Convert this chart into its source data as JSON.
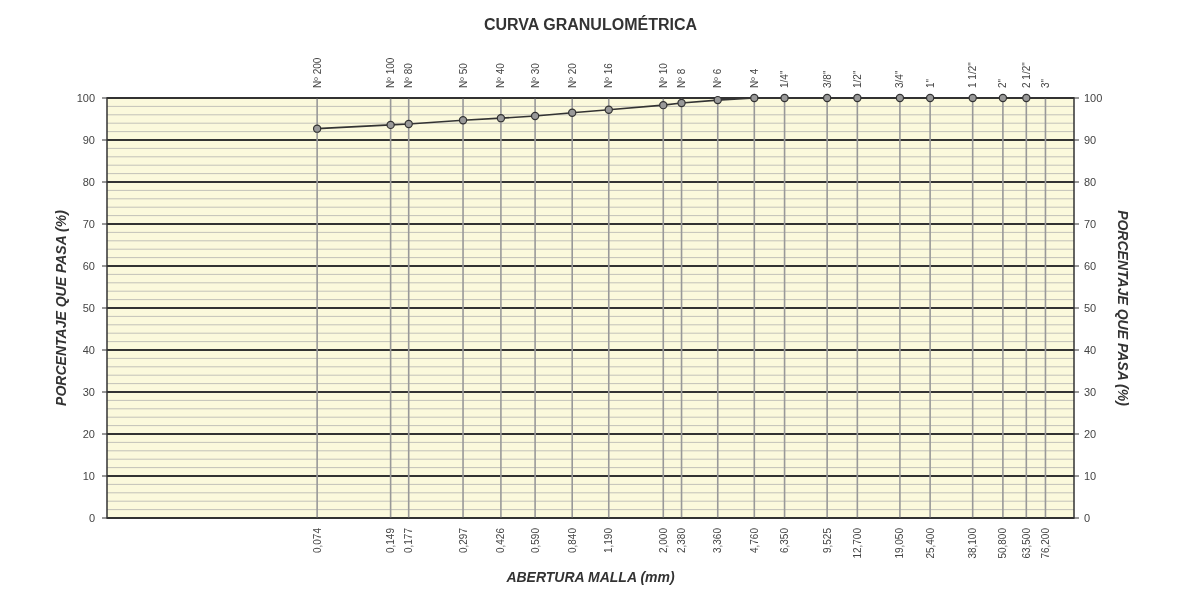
{
  "chart_data": {
    "type": "line",
    "title": "CURVA GRANULOMÉTRICA",
    "xlabel": "ABERTURA MALLA (mm)",
    "ylabel": "PORCENTAJE QUE PASA (%)",
    "y2label": "PORCENTAJE QUE PASA (%)",
    "log": "x",
    "grid": true,
    "marker": "circle",
    "line_style": "solid",
    "x": [
      0.074,
      0.149,
      0.177,
      0.297,
      0.426,
      0.59,
      0.84,
      1.19,
      2.0,
      2.38,
      3.36,
      4.76,
      6.35,
      9.525,
      12.7,
      19.05,
      25.4,
      38.1,
      50.8,
      63.5
    ],
    "series": [
      {
        "color": "#333333",
        "values": [
          92.7,
          93.6,
          93.8,
          94.7,
          95.2,
          95.7,
          96.5,
          97.2,
          98.3,
          98.8,
          99.5,
          100,
          100,
          100,
          100,
          100,
          100,
          100,
          100,
          100
        ]
      }
    ],
    "xlim": [
      0.01,
      100
    ],
    "xticks": [
      {
        "value": 0.074,
        "label": "0,074"
      },
      {
        "value": 0.149,
        "label": "0,149"
      },
      {
        "value": 0.177,
        "label": "0,177"
      },
      {
        "value": 0.297,
        "label": "0,297"
      },
      {
        "value": 0.426,
        "label": "0,426"
      },
      {
        "value": 0.59,
        "label": "0,590"
      },
      {
        "value": 0.84,
        "label": "0,840"
      },
      {
        "value": 1.19,
        "label": "1,190"
      },
      {
        "value": 2.0,
        "label": "2,000"
      },
      {
        "value": 2.38,
        "label": "2,380"
      },
      {
        "value": 3.36,
        "label": "3,360"
      },
      {
        "value": 4.76,
        "label": "4,760"
      },
      {
        "value": 6.35,
        "label": "6,350"
      },
      {
        "value": 9.525,
        "label": "9,525"
      },
      {
        "value": 12.7,
        "label": "12,700"
      },
      {
        "value": 19.05,
        "label": "19,050"
      },
      {
        "value": 25.4,
        "label": "25,400"
      },
      {
        "value": 38.1,
        "label": "38,100"
      },
      {
        "value": 50.8,
        "label": "50,800"
      },
      {
        "value": 63.5,
        "label": "63,500"
      },
      {
        "value": 76.2,
        "label": "76,200"
      }
    ],
    "annotations": [
      "Nº 200",
      "Nº 100",
      "Nº 80",
      "Nº 50",
      "Nº 40",
      "Nº 30",
      "Nº 20",
      "Nº 16",
      "Nº 10",
      "Nº 8",
      "Nº 6",
      "Nº 4",
      "1/4\"",
      "3/8\"",
      "1/2\"",
      "3/4\"",
      "1\"",
      "1 1/2\"",
      "2\"",
      "2 1/2\"",
      "3\""
    ],
    "ylim": [
      0,
      100
    ],
    "yticks": [
      0,
      {
        "value": 2,
        "label": null
      },
      {
        "value": 4,
        "label": null
      },
      {
        "value": 6,
        "label": null
      },
      {
        "value": 8,
        "label": null
      },
      10,
      {
        "value": 12,
        "label": null
      },
      {
        "value": 14,
        "label": null
      },
      {
        "value": 16,
        "label": null
      },
      {
        "value": 18,
        "label": null
      },
      20,
      {
        "value": 22,
        "label": null
      },
      {
        "value": 24,
        "label": null
      },
      {
        "value": 26,
        "label": null
      },
      {
        "value": 28,
        "label": null
      },
      30,
      {
        "value": 32,
        "label": null
      },
      {
        "value": 34,
        "label": null
      },
      {
        "value": 36,
        "label": null
      },
      {
        "value": 38,
        "label": null
      },
      40,
      {
        "value": 42,
        "label": null
      },
      {
        "value": 44,
        "label": null
      },
      {
        "value": 46,
        "label": null
      },
      {
        "value": 48,
        "label": null
      },
      50,
      {
        "value": 52,
        "label": null
      },
      {
        "value": 54,
        "label": null
      },
      {
        "value": 56,
        "label": null
      },
      {
        "value": 58,
        "label": null
      },
      60,
      {
        "value": 62,
        "label": null
      },
      {
        "value": 64,
        "label": null
      },
      {
        "value": 66,
        "label": null
      },
      {
        "value": 68,
        "label": null
      },
      70,
      {
        "value": 72,
        "label": null
      },
      {
        "value": 74,
        "label": null
      },
      {
        "value": 76,
        "label": null
      },
      {
        "value": 78,
        "label": null
      },
      80,
      {
        "value": 82,
        "label": null
      },
      {
        "value": 84,
        "label": null
      },
      {
        "value": 86,
        "label": null
      },
      {
        "value": 88,
        "label": null
      },
      90,
      {
        "value": 92,
        "label": null
      },
      {
        "value": 94,
        "label": null
      },
      {
        "value": 96,
        "label": null
      },
      {
        "value": 98,
        "label": null
      },
      100
    ],
    "y2lim": [
      0,
      100
    ],
    "y2ticks": [
      0,
      10,
      20,
      30,
      40,
      50,
      60,
      70,
      80,
      90,
      100
    ]
  }
}
